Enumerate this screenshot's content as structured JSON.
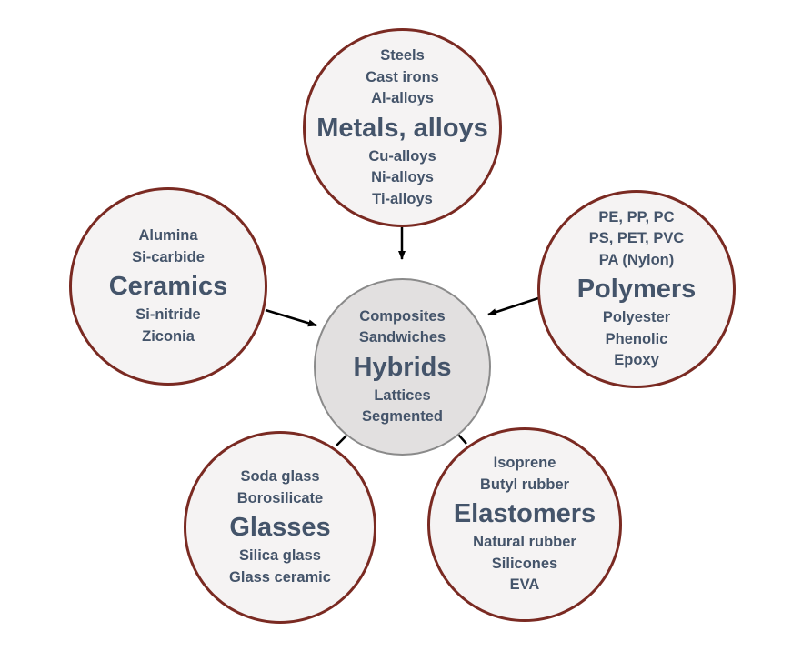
{
  "metals": {
    "above": [
      "Steels",
      "Cast irons",
      "Al-alloys"
    ],
    "title": "Metals, alloys",
    "below": [
      "Cu-alloys",
      "Ni-alloys",
      "Ti-alloys"
    ]
  },
  "ceramics": {
    "above": [
      "Alumina",
      "Si-carbide"
    ],
    "title": "Ceramics",
    "below": [
      "Si-nitride",
      "Ziconia"
    ]
  },
  "polymers": {
    "above": [
      "PE, PP, PC",
      "PS, PET, PVC",
      "PA (Nylon)"
    ],
    "title": "Polymers",
    "below": [
      "Polyester",
      "Phenolic",
      "Epoxy"
    ]
  },
  "hybrids": {
    "above": [
      "Composites",
      "Sandwiches"
    ],
    "title": "Hybrids",
    "below": [
      "Lattices",
      "Segmented"
    ]
  },
  "glasses": {
    "above": [
      "Soda glass",
      "Borosilicate"
    ],
    "title": "Glasses",
    "below": [
      "Silica glass",
      "Glass ceramic"
    ]
  },
  "elastomers": {
    "above": [
      "Isoprene",
      "Butyl rubber"
    ],
    "title": "Elastomers",
    "below": [
      "Natural rubber",
      "Silicones",
      "EVA"
    ]
  },
  "colors": {
    "border": "#7a2a22",
    "text": "#44546a",
    "center_fill": "#e2e0e0",
    "fill": "#f5f3f3",
    "arrow": "#000000"
  }
}
